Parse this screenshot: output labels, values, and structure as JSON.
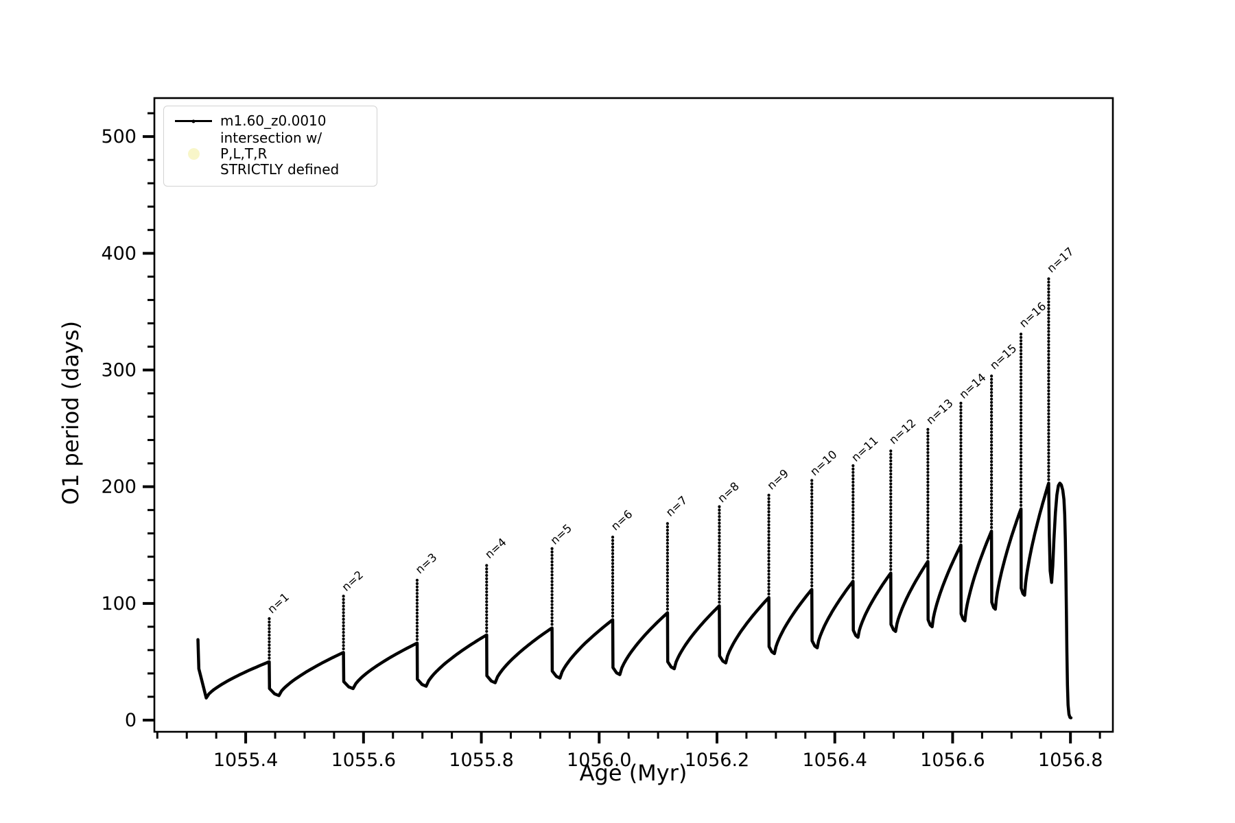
{
  "figure": {
    "background": "#ffffff",
    "curve_color": "#000000",
    "axis_color": "#000000",
    "legend_border_color": "#d2d2d2",
    "intersection_marker_color": "#f7f5c0"
  },
  "legend": {
    "entries": [
      {
        "label": "m1.60_z0.0010",
        "marker": "line-with-dot",
        "color": "#000000"
      },
      {
        "label_line1": "intersection w/ P,L,T,R",
        "label_line2": "STRICTLY defined",
        "marker": "circle",
        "color": "#f7f5c0"
      }
    ]
  },
  "chart_data": {
    "type": "line",
    "title": "",
    "xlabel": "Age (Myr)",
    "ylabel": "O1 period (days)",
    "xlim": [
      1055.245,
      1056.872
    ],
    "ylim": [
      -10,
      533
    ],
    "grid": false,
    "legend_position": "upper left",
    "xticks": {
      "major": [
        1055.4,
        1055.6,
        1055.8,
        1056.0,
        1056.2,
        1056.4,
        1056.6,
        1056.8
      ],
      "labels": [
        "1055.4",
        "1055.6",
        "1055.8",
        "1056.0",
        "1056.2",
        "1056.4",
        "1056.6",
        "1056.8"
      ],
      "minor_step": 0.05
    },
    "yticks": {
      "major": [
        0,
        100,
        200,
        300,
        400,
        500
      ],
      "labels": [
        "0",
        "100",
        "200",
        "300",
        "400",
        "500"
      ],
      "minor_step": 20
    },
    "series": [
      {
        "name": "m1.60_z0.0010",
        "color": "#000000",
        "style": "thick dotted-marker line",
        "start": {
          "age": 1055.319,
          "value": 69,
          "dip_age": 1055.333,
          "dip_value": 19
        },
        "rise_exponent": 0.7,
        "dip_offset_frac": 0.13,
        "cycles": [
          {
            "n": 1,
            "spike_age": 1055.44,
            "pre_spike_value": 50,
            "peak": 88,
            "dip_after": 21
          },
          {
            "n": 2,
            "spike_age": 1055.566,
            "pre_spike_value": 58,
            "peak": 107,
            "dip_after": 27
          },
          {
            "n": 3,
            "spike_age": 1055.691,
            "pre_spike_value": 66,
            "peak": 122,
            "dip_after": 29
          },
          {
            "n": 4,
            "spike_age": 1055.809,
            "pre_spike_value": 73,
            "peak": 135,
            "dip_after": 32
          },
          {
            "n": 5,
            "spike_age": 1055.92,
            "pre_spike_value": 79,
            "peak": 147,
            "dip_after": 36
          },
          {
            "n": 6,
            "spike_age": 1056.023,
            "pre_spike_value": 86,
            "peak": 159,
            "dip_after": 39
          },
          {
            "n": 7,
            "spike_age": 1056.116,
            "pre_spike_value": 92,
            "peak": 171,
            "dip_after": 44
          },
          {
            "n": 8,
            "spike_age": 1056.204,
            "pre_spike_value": 98,
            "peak": 183,
            "dip_after": 49
          },
          {
            "n": 9,
            "spike_age": 1056.288,
            "pre_spike_value": 105,
            "peak": 194,
            "dip_after": 57
          },
          {
            "n": 10,
            "spike_age": 1056.361,
            "pre_spike_value": 112,
            "peak": 206,
            "dip_after": 62
          },
          {
            "n": 11,
            "spike_age": 1056.431,
            "pre_spike_value": 119,
            "peak": 218,
            "dip_after": 71
          },
          {
            "n": 12,
            "spike_age": 1056.495,
            "pre_spike_value": 126,
            "peak": 233,
            "dip_after": 76
          },
          {
            "n": 13,
            "spike_age": 1056.558,
            "pre_spike_value": 136,
            "peak": 250,
            "dip_after": 80
          },
          {
            "n": 14,
            "spike_age": 1056.614,
            "pre_spike_value": 150,
            "peak": 272,
            "dip_after": 85
          },
          {
            "n": 15,
            "spike_age": 1056.666,
            "pre_spike_value": 162,
            "peak": 297,
            "dip_after": 95
          },
          {
            "n": 16,
            "spike_age": 1056.716,
            "pre_spike_value": 181,
            "peak": 333,
            "dip_after": 107
          },
          {
            "n": 17,
            "spike_age": 1056.763,
            "pre_spike_value": 203,
            "peak": 380,
            "dip_after": 118
          }
        ],
        "tail": [
          [
            1056.764,
            160
          ],
          [
            1056.7655,
            128
          ],
          [
            1056.768,
            118
          ],
          [
            1056.77,
            132
          ],
          [
            1056.772,
            155
          ],
          [
            1056.7745,
            178
          ],
          [
            1056.777,
            193
          ],
          [
            1056.7795,
            201
          ],
          [
            1056.782,
            203
          ],
          [
            1056.7845,
            201.5
          ],
          [
            1056.787,
            197
          ],
          [
            1056.789,
            189
          ],
          [
            1056.7903,
            176
          ],
          [
            1056.7913,
            155
          ],
          [
            1056.7922,
            126
          ],
          [
            1056.7931,
            92
          ],
          [
            1056.794,
            58
          ],
          [
            1056.7949,
            30
          ],
          [
            1056.796,
            13
          ],
          [
            1056.7975,
            5
          ],
          [
            1056.7992,
            2.3
          ],
          [
            1056.8008,
            2
          ]
        ]
      }
    ],
    "annotations_format": "n={n} at each spike peak, rotated 45deg"
  }
}
